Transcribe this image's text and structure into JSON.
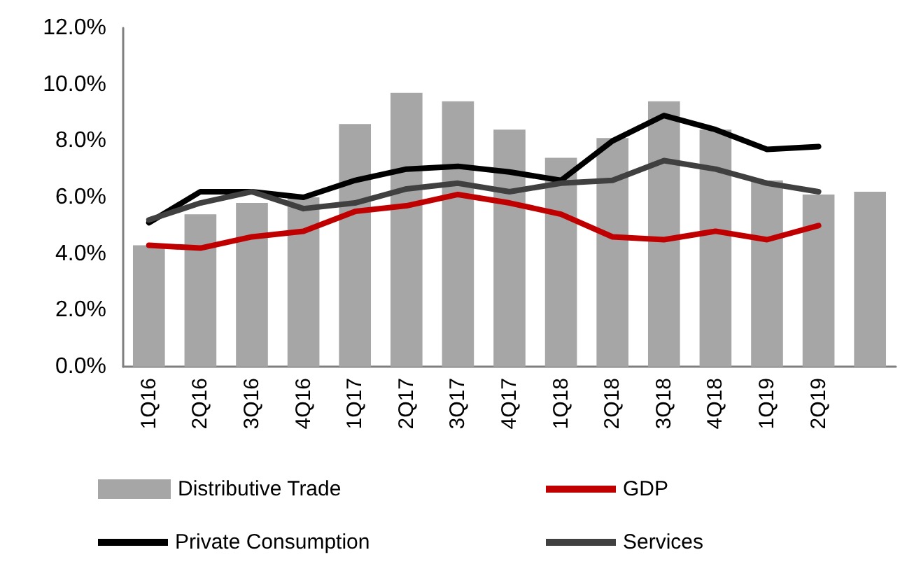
{
  "chart_data": {
    "type": "bar",
    "categories": [
      "1Q16",
      "2Q16",
      "3Q16",
      "4Q16",
      "1Q17",
      "2Q17",
      "3Q17",
      "4Q17",
      "1Q18",
      "2Q18",
      "3Q18",
      "4Q18",
      "1Q19",
      "2Q19",
      null
    ],
    "series": [
      {
        "name": "Distributive Trade",
        "color": "#a6a6a6",
        "values": [
          4.3,
          5.4,
          5.8,
          6.0,
          8.6,
          9.7,
          9.4,
          8.4,
          7.4,
          8.1,
          9.4,
          8.4,
          6.6,
          6.1,
          6.2
        ]
      },
      {
        "name": "GDP",
        "type": "line",
        "color": "#c00000",
        "values": [
          4.3,
          4.2,
          4.6,
          4.8,
          5.5,
          5.7,
          6.1,
          5.8,
          5.4,
          4.6,
          4.5,
          4.8,
          4.5,
          5.0,
          null
        ]
      },
      {
        "name": "Private Consumption",
        "type": "line",
        "color": "#000000",
        "values": [
          5.1,
          6.2,
          6.2,
          6.0,
          6.6,
          7.0,
          7.1,
          6.9,
          6.6,
          8.0,
          8.9,
          8.4,
          7.7,
          7.8,
          null
        ]
      },
      {
        "name": "Services",
        "type": "line",
        "color": "#404040",
        "values": [
          5.2,
          5.8,
          6.2,
          5.6,
          5.8,
          6.3,
          6.5,
          6.2,
          6.5,
          6.6,
          7.3,
          7.0,
          6.5,
          6.2,
          null
        ]
      }
    ],
    "ylim": [
      0,
      12
    ],
    "yticks": [
      {
        "value": 0,
        "label": "0.0%"
      },
      {
        "value": 2,
        "label": "2.0%"
      },
      {
        "value": 4,
        "label": "4.0%"
      },
      {
        "value": 6,
        "label": "6.0%"
      },
      {
        "value": 8,
        "label": "8.0%"
      },
      {
        "value": 10,
        "label": "10.0%"
      },
      {
        "value": 12,
        "label": "12.0%"
      }
    ],
    "grid": false,
    "legend": "bottom",
    "marker": "none"
  }
}
